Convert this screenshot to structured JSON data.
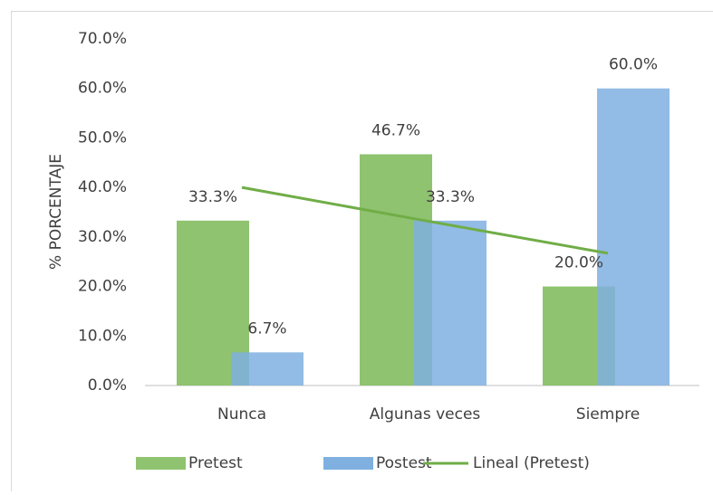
{
  "chart_data": {
    "type": "bar",
    "y_label": "% PORCENTAJE",
    "categories": [
      "Nunca",
      "Algunas veces",
      "Siempre"
    ],
    "series": [
      {
        "name": "Pretest",
        "color": "#8fc36f",
        "values": [
          33.3,
          46.7,
          20.0
        ],
        "value_labels": [
          "33.3%",
          "46.7%",
          "20.0%"
        ]
      },
      {
        "name": "Postest",
        "color": "#7fb0e0",
        "values": [
          6.7,
          33.3,
          60.0
        ],
        "value_labels": [
          "6.7%",
          "33.3%",
          "60.0%"
        ]
      },
      {
        "name": "Lineal (Pretest)",
        "type": "line",
        "color": "#70ad47",
        "values": [
          40.0,
          33.3,
          26.7
        ]
      }
    ],
    "ylim": [
      0,
      70
    ],
    "yticks": [
      {
        "value": 0,
        "label": "0.0%"
      },
      {
        "value": 10,
        "label": "10.0%"
      },
      {
        "value": 20,
        "label": "20.0%"
      },
      {
        "value": 30,
        "label": "30.0%"
      },
      {
        "value": 40,
        "label": "40.0%"
      },
      {
        "value": 50,
        "label": "50.0%"
      },
      {
        "value": 60,
        "label": "60.0%"
      },
      {
        "value": 70,
        "label": "70.0%"
      }
    ],
    "legend": "bottom"
  }
}
